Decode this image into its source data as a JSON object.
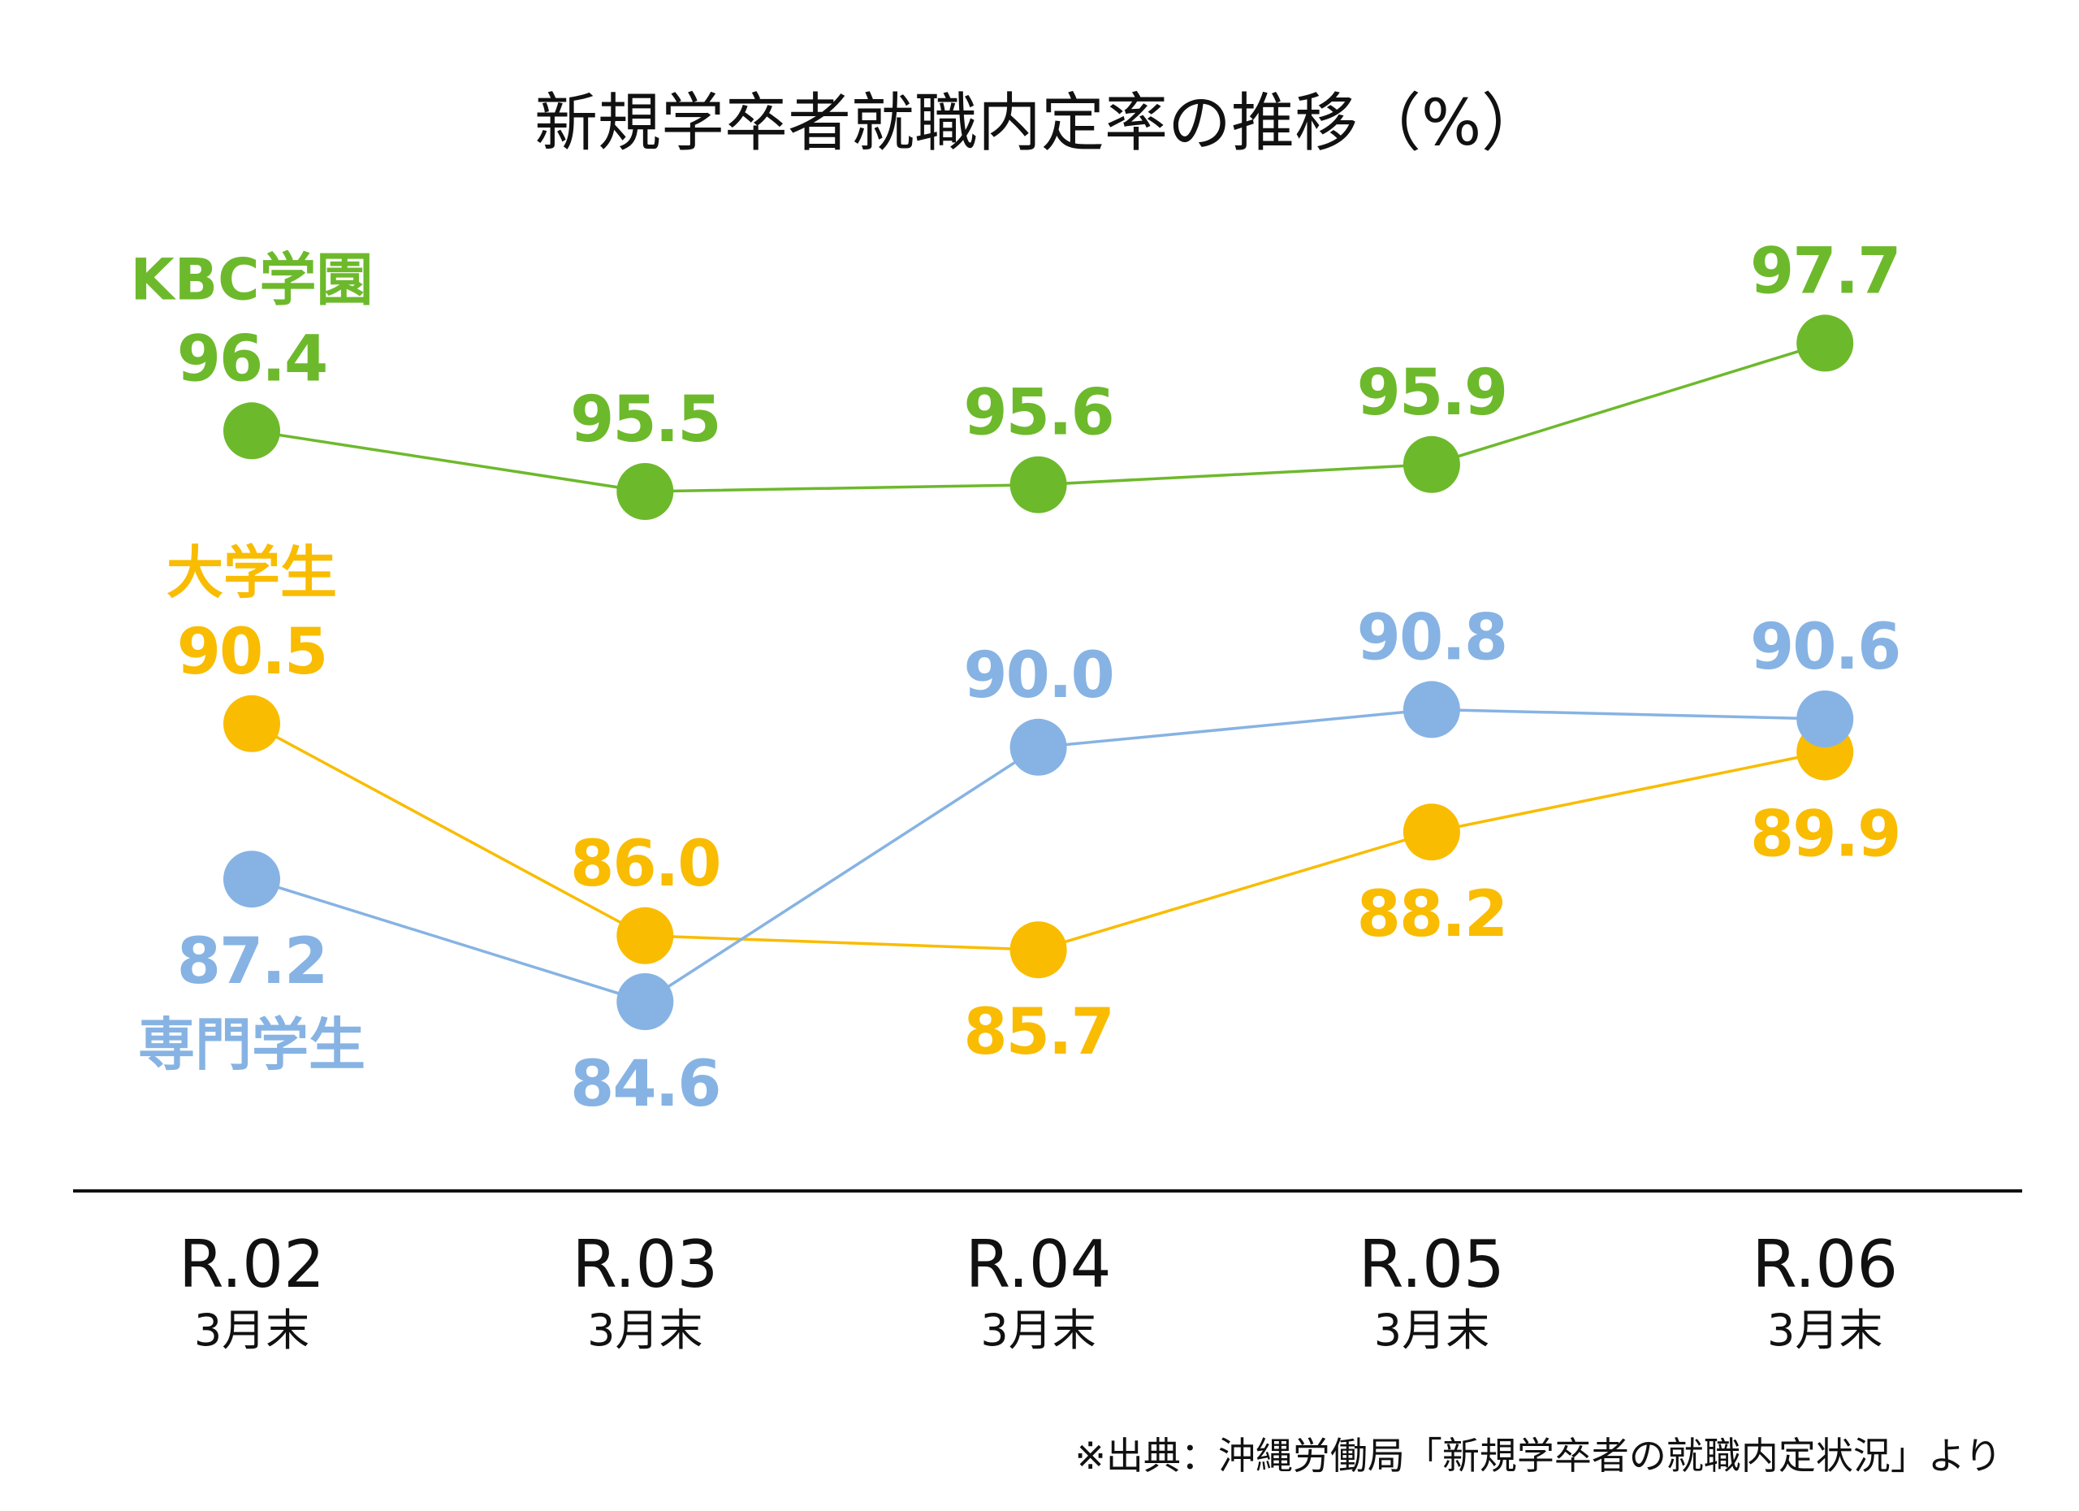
{
  "chart_data": {
    "type": "line",
    "title": "新規学卒者就職内定率の推移（%）",
    "xlabel": "",
    "ylabel": "",
    "categories": [
      "R.02",
      "R.03",
      "R.04",
      "R.05",
      "R.06"
    ],
    "category_sublabel": "3月末",
    "grid": false,
    "legend": "inline-left",
    "series": [
      {
        "name": "KBC学園",
        "color": "#6DB92C",
        "values": [
          96.4,
          95.5,
          95.6,
          95.9,
          97.7
        ],
        "value_labels": [
          "96.4",
          "95.5",
          "95.6",
          "95.9",
          "97.7"
        ],
        "label_positions": [
          "above",
          "above",
          "above",
          "above",
          "above"
        ]
      },
      {
        "name": "大学生",
        "color": "#F9BC00",
        "values": [
          90.5,
          86.0,
          85.7,
          88.2,
          89.9
        ],
        "value_labels": [
          "90.5",
          "86.0",
          "85.7",
          "88.2",
          "89.9"
        ],
        "label_positions": [
          "above",
          "above",
          "below",
          "below",
          "below"
        ]
      },
      {
        "name": "専門学生",
        "color": "#86B3E3",
        "values": [
          87.2,
          84.6,
          90.0,
          90.8,
          90.6
        ],
        "value_labels": [
          "87.2",
          "84.6",
          "90.0",
          "90.8",
          "90.6"
        ],
        "label_positions": [
          "below",
          "below",
          "above",
          "above",
          "above"
        ]
      }
    ],
    "source_note": "※出典：沖縄労働局「新規学卒者の就職内定状況」より"
  }
}
